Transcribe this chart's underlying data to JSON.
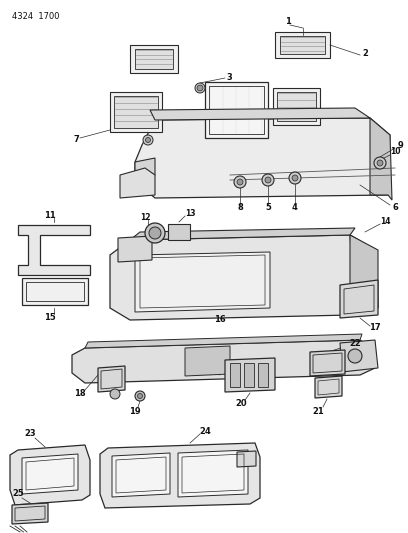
{
  "title_code": "4324  1700",
  "bg_color": "#ffffff",
  "line_color": "#2a2a2a",
  "label_color": "#111111",
  "fig_width": 4.08,
  "fig_height": 5.33,
  "dpi": 100,
  "gray_fill": "#e8e8e8",
  "mid_gray": "#d0d0d0",
  "dark_gray": "#b0b0b0"
}
